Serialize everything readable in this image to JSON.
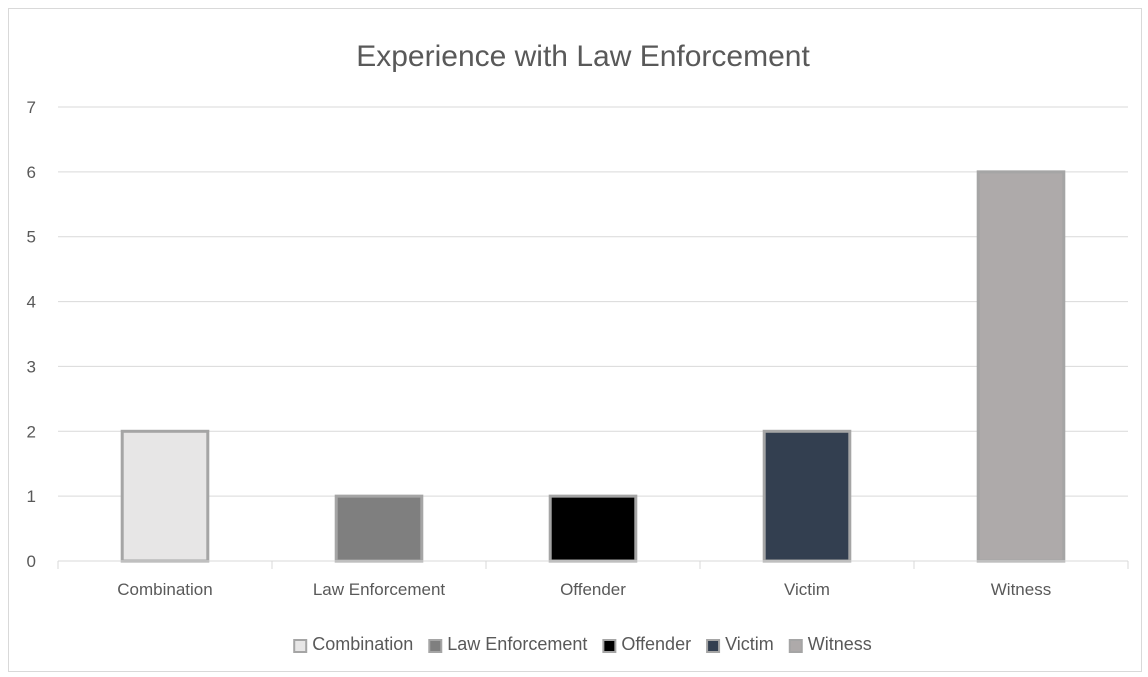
{
  "chart_data": {
    "type": "bar",
    "title": "Experience with Law Enforcement",
    "xlabel": "",
    "ylabel": "",
    "categories": [
      "Combination",
      "Law Enforcement",
      "Offender",
      "Victim",
      "Witness"
    ],
    "values": [
      2,
      1,
      1,
      2,
      6
    ],
    "colors": [
      "#e7e6e6",
      "#7f7f7f",
      "#000000",
      "#333f50",
      "#aeaaaa"
    ],
    "bar_border_color": "#a5a5a5",
    "ylim": [
      0,
      7
    ],
    "yticks": [
      0,
      1,
      2,
      3,
      4,
      5,
      6,
      7
    ],
    "grid": true,
    "legend": {
      "position": "bottom",
      "entries": [
        "Combination",
        "Law Enforcement",
        "Offender",
        "Victim",
        "Witness"
      ]
    }
  }
}
